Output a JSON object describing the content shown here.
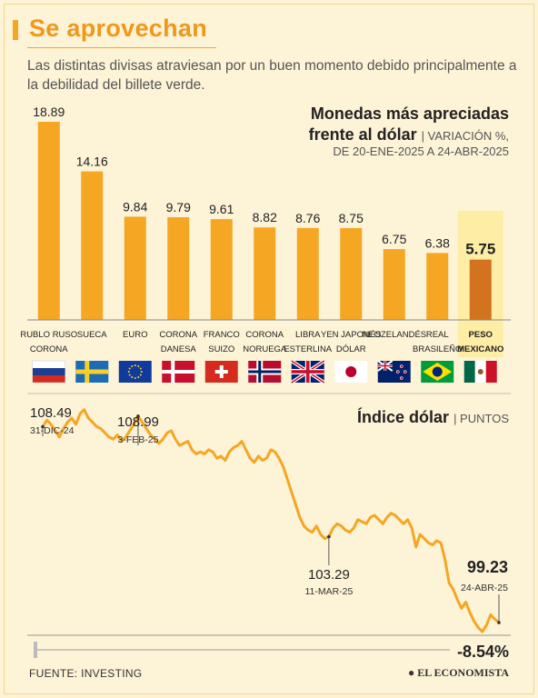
{
  "header": {
    "title": "Se aprovechan",
    "subtitle": "Las distintas divisas atraviesan por un buen momento debido principalmente a la debilidad del billete verde."
  },
  "bar_section": {
    "title_line1": "Monedas más apreciadas",
    "title_line2": "frente al dólar",
    "unit": "| VARIACIÓN %,",
    "range": "DE 20-ENE-2025 A 24-ABR-2025"
  },
  "line_section": {
    "title": "Índice dólar",
    "unit": "| PUNTOS",
    "change_label": "-8.54%"
  },
  "footer": {
    "source": "FUENTE: INVESTING",
    "brand": "EL ECONOMISTA"
  },
  "colors": {
    "bar": "#f5a623",
    "highlight_bar": "#d4731f",
    "highlight_bg": "#fdeca0",
    "line": "#f5a623"
  },
  "chart_data": [
    {
      "type": "bar",
      "categories": [
        [
          "RUBLO RUSO",
          "CORONA"
        ],
        [
          "SUECA"
        ],
        [
          "EURO"
        ],
        [
          "CORONA",
          "DANESA"
        ],
        [
          "FRANCO",
          "SUIZO"
        ],
        [
          "CORONA",
          "NORUEGA"
        ],
        [
          "LIBRA",
          "ESTERLINA"
        ],
        [
          "YEN JAPONÉS",
          "DÓLAR"
        ],
        [
          "NEOZELANDÉS"
        ],
        [
          "REAL",
          "BRASILEÑO"
        ],
        [
          "PESO",
          "MEXICANO"
        ]
      ],
      "flags": [
        "russia-flag",
        "sweden-flag",
        "eu-flag",
        "denmark-flag",
        "switzerland-flag",
        "norway-flag",
        "uk-flag",
        "japan-flag",
        "new-zealand-flag",
        "brazil-flag",
        "mexico-flag"
      ],
      "values": [
        18.89,
        14.16,
        9.84,
        9.79,
        9.61,
        8.82,
        8.76,
        8.75,
        6.75,
        6.38,
        5.75
      ],
      "value_labels": [
        "18.89",
        "14.16",
        "9.84",
        "9.79",
        "9.61",
        "8.82",
        "8.76",
        "8.75",
        "6.75",
        "6.38",
        "5.75"
      ],
      "highlight_index": 10
    },
    {
      "type": "line",
      "series": [
        {
          "values": [
            108.49,
            108.8,
            108.6,
            108.3,
            108.0,
            108.4,
            108.7,
            108.9,
            108.6,
            109.1,
            109.3,
            108.9,
            108.7,
            108.5,
            108.4,
            108.2,
            108.0,
            107.9,
            108.1,
            107.8,
            108.0,
            108.3,
            108.6,
            108.99,
            108.7,
            108.4,
            108.1,
            107.9,
            107.7,
            107.9,
            108.2,
            108.3,
            107.9,
            107.6,
            107.7,
            107.8,
            107.4,
            107.2,
            107.3,
            107.2,
            107.4,
            107.3,
            107.0,
            107.1,
            106.9,
            107.3,
            107.5,
            107.6,
            107.8,
            107.4,
            107.0,
            106.8,
            107.1,
            106.9,
            107.0,
            107.4,
            107.3,
            107.0,
            106.6,
            106.0,
            105.4,
            104.8,
            104.2,
            103.8,
            103.6,
            103.5,
            103.8,
            103.4,
            103.2,
            103.29,
            103.7,
            103.9,
            103.8,
            103.6,
            103.5,
            103.7,
            104.1,
            104.0,
            103.9,
            104.2,
            104.3,
            104.1,
            103.9,
            104.2,
            104.4,
            104.3,
            104.1,
            103.9,
            104.1,
            103.7,
            102.8,
            103.4,
            103.2,
            103.0,
            102.9,
            103.1,
            103.0,
            102.2,
            101.1,
            100.8,
            100.3,
            99.9,
            100.2,
            99.7,
            99.3,
            99.0,
            98.8,
            99.1,
            99.6,
            99.4,
            99.23
          ],
          "annotations": [
            {
              "index": 0,
              "value": "108.49",
              "date": "31-DIC-24"
            },
            {
              "index": 23,
              "value": "108.99",
              "date": "3-FEB-25"
            },
            {
              "index": 69,
              "value": "103.29",
              "date": "11-MAR-25"
            },
            {
              "index": 110,
              "value": "99.23",
              "date": "24-ABR-25"
            }
          ]
        }
      ],
      "ylim": [
        98.5,
        109.5
      ]
    }
  ]
}
